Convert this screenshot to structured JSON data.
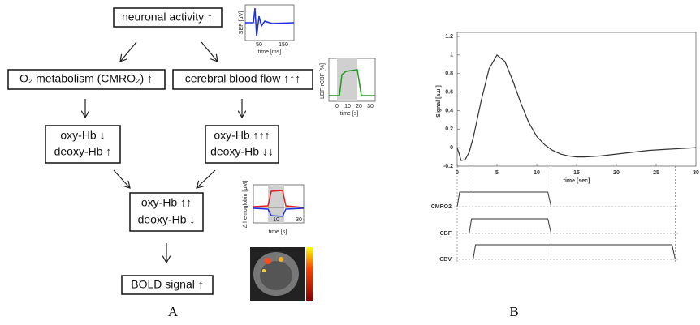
{
  "panel_a": {
    "nodes": [
      {
        "label": "neuronal activity ↑"
      },
      {
        "label": "O₂ metabolism (CMRO₂) ↑"
      },
      {
        "label": "cerebral blood flow ↑↑↑"
      },
      {
        "lines": [
          "oxy-Hb ↓",
          "deoxy-Hb ↑"
        ]
      },
      {
        "lines": [
          "oxy-Hb ↑↑↑",
          "deoxy-Hb ↓↓"
        ]
      },
      {
        "lines": [
          "oxy-Hb ↑↑",
          "deoxy-Hb ↓"
        ]
      },
      {
        "label": "BOLD signal ↑"
      }
    ],
    "insets": [
      {
        "ylabel": "SEP [µV]",
        "ticks": [
          "50",
          "150"
        ],
        "xlabel": "time [ms]"
      },
      {
        "ylabel": "LDF-rCBF [%]",
        "ticks": [
          "0",
          "10",
          "20",
          "30"
        ],
        "xlabel": "time [s]"
      },
      {
        "ylabel": "Δ hemoglobin [µM]",
        "ticks": [
          "10",
          "30"
        ],
        "xlabel": "time [s]"
      }
    ],
    "caption": "A"
  },
  "chart_data": {
    "type": "line",
    "ylabel": "Signal [a.u.]",
    "xlabel": "time [sec]",
    "x": [
      0,
      0.5,
      1,
      1.5,
      2,
      3,
      4,
      5,
      6,
      7,
      8,
      9,
      10,
      11,
      12,
      13,
      14,
      15,
      16,
      18,
      20,
      22,
      24,
      26,
      28,
      30
    ],
    "series": [
      {
        "color": "#333333",
        "values": [
          0,
          -0.14,
          -0.13,
          -0.05,
          0.1,
          0.5,
          0.85,
          1.0,
          0.93,
          0.72,
          0.48,
          0.27,
          0.12,
          0.03,
          -0.03,
          -0.07,
          -0.09,
          -0.1,
          -0.1,
          -0.09,
          -0.07,
          -0.05,
          -0.03,
          -0.02,
          -0.01,
          0
        ]
      }
    ],
    "xlim": [
      0,
      30
    ],
    "xticks": [
      0,
      5,
      10,
      15,
      20,
      25,
      30
    ],
    "ylim": [
      -0.2,
      1.2
    ],
    "yticks": [
      -0.2,
      0,
      0.2,
      0.4,
      0.6,
      0.8,
      1,
      1.2
    ],
    "traces": [
      {
        "name": "CMRO2",
        "start": 0,
        "end": 11.8
      },
      {
        "name": "CBF",
        "start": 1.5,
        "end": 11.8
      },
      {
        "name": "CBV",
        "start": 2,
        "end": 27.4
      }
    ],
    "caption": "B"
  }
}
